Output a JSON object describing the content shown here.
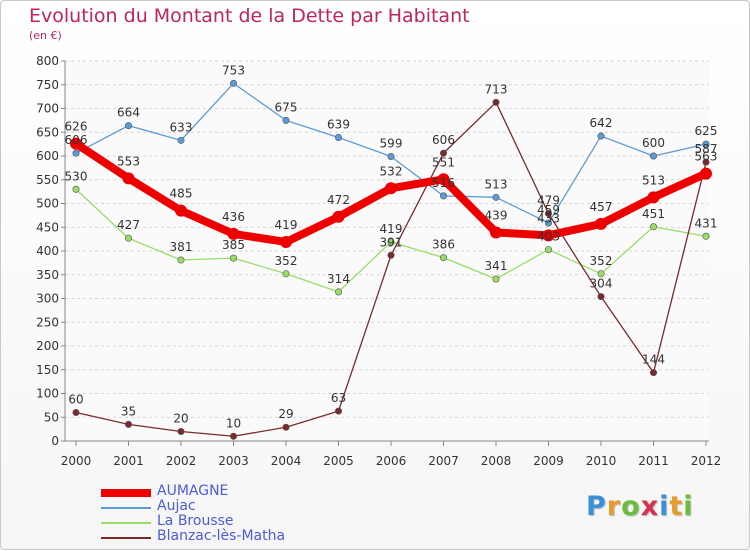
{
  "header": {
    "title": "Evolution du Montant de la Dette par Habitant",
    "subtitle": "(en €)"
  },
  "logo": {
    "text": "Proxiti",
    "colors": [
      "#3a8fd8",
      "#e89a2c",
      "#6cbb3c",
      "#d4344c",
      "#3a8fd8",
      "#e89a2c",
      "#6cbb3c"
    ]
  },
  "chart_data": {
    "type": "line",
    "title": "Evolution du Montant de la Dette par Habitant",
    "subtitle": "(en €)",
    "xlabel": "",
    "ylabel": "",
    "x": [
      "2000",
      "2001",
      "2002",
      "2003",
      "2004",
      "2005",
      "2006",
      "2007",
      "2008",
      "2009",
      "2010",
      "2011",
      "2012"
    ],
    "ylim": [
      0,
      800
    ],
    "yticks": [
      0,
      50,
      100,
      150,
      200,
      250,
      300,
      350,
      400,
      450,
      500,
      550,
      600,
      650,
      700,
      750,
      800
    ],
    "grid": "horizontal",
    "legend_position": "bottom-left",
    "series": [
      {
        "name": "AUMAGNE",
        "color": "#ee0000",
        "bold": true,
        "values": [
          626,
          553,
          485,
          436,
          419,
          472,
          532,
          551,
          439,
          433,
          457,
          513,
          563
        ],
        "labels": [
          "626",
          "553",
          "485",
          "436",
          "419",
          "472",
          "532",
          "551",
          "439",
          "433",
          "457",
          "513",
          "563"
        ]
      },
      {
        "name": "Aujac",
        "color": "#5b9bd5",
        "bold": false,
        "values": [
          606,
          664,
          633,
          753,
          675,
          639,
          599,
          516,
          513,
          459,
          642,
          600,
          625
        ],
        "labels": [
          "606",
          "664",
          "633",
          "753",
          "675",
          "639",
          "599",
          "516",
          "513",
          "459",
          "642",
          "600",
          "625"
        ]
      },
      {
        "name": "La Brousse",
        "color": "#99dd66",
        "bold": false,
        "values": [
          530,
          427,
          381,
          385,
          352,
          314,
          419,
          386,
          341,
          403,
          352,
          451,
          431
        ],
        "labels": [
          "530",
          "427",
          "381",
          "385",
          "352",
          "314",
          "419",
          "386",
          "341",
          "403",
          "352",
          "451",
          "431"
        ]
      },
      {
        "name": "Blanzac-lès-Matha",
        "color": "#7a2a2a",
        "bold": false,
        "values": [
          60,
          35,
          20,
          10,
          29,
          63,
          391,
          606,
          713,
          479,
          304,
          144,
          587
        ],
        "labels": [
          "60",
          "35",
          "20",
          "10",
          "29",
          "63",
          "391",
          "606",
          "713",
          "479",
          "304",
          "144",
          "587"
        ]
      }
    ]
  }
}
